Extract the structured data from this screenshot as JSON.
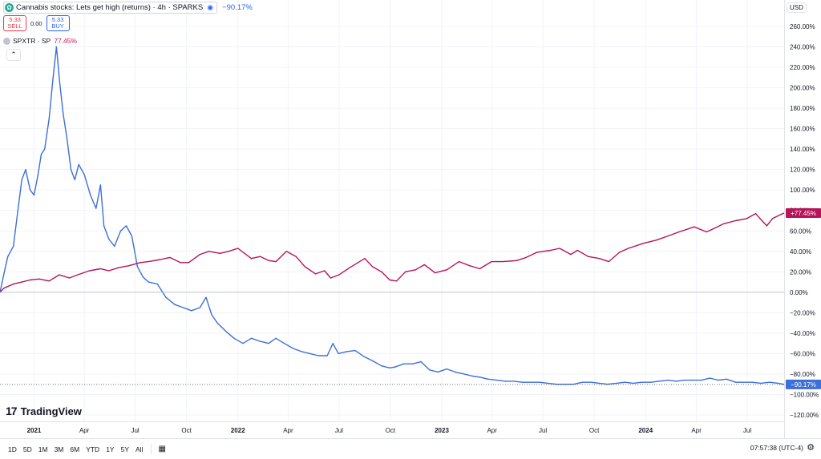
{
  "legend": {
    "symbol_logo": "cannabis-leaf-icon",
    "title": "Cannabis stocks: Lets get high (returns) · 4h · SPARKS",
    "change": "−90.17%",
    "sell_price": "5.33",
    "sell_label": "SELL",
    "spread": "0.00",
    "buy_price": "5.33",
    "buy_label": "BUY",
    "compare_symbol": "SPXTR · SP",
    "compare_change": "77.45%",
    "collapse_icon": "chevron-up-icon"
  },
  "price_scale": {
    "currency": "USD",
    "last_cannabis": "−90.17%",
    "last_spx": "+77.45%"
  },
  "logo_text": "TradingView",
  "bottom_bar": {
    "periods": [
      "1D",
      "5D",
      "1M",
      "3M",
      "6M",
      "YTD",
      "1Y",
      "5Y",
      "All"
    ],
    "calendar_icon": "calendar-range-icon",
    "time": "07:57:38 (UTC-4)",
    "settings_icon": "gear-icon"
  },
  "colors": {
    "cannabis": "#3c6fd8",
    "spx": "#b5135a",
    "grid": "#f0f3fa",
    "axis_text": "#131722"
  },
  "chart_data": {
    "type": "line",
    "title": "",
    "xlabel": "",
    "ylabel": "",
    "ylim": [
      -120,
      260
    ],
    "y_unit": "%",
    "y_ticks": [
      260,
      240,
      220,
      200,
      180,
      160,
      140,
      120,
      100,
      80,
      60,
      40,
      20,
      0,
      -20,
      -40,
      -60,
      -80,
      -100,
      -120
    ],
    "x_ticks": [
      {
        "label": "2021",
        "x": "2021-01-01",
        "bold": true
      },
      {
        "label": "Apr",
        "x": "2021-04-01"
      },
      {
        "label": "Jul",
        "x": "2021-07-01"
      },
      {
        "label": "Oct",
        "x": "2021-10-01"
      },
      {
        "label": "2022",
        "x": "2022-01-01",
        "bold": true
      },
      {
        "label": "Apr",
        "x": "2022-04-01"
      },
      {
        "label": "Jul",
        "x": "2022-07-01"
      },
      {
        "label": "Oct",
        "x": "2022-10-01"
      },
      {
        "label": "2023",
        "x": "2023-01-01",
        "bold": true
      },
      {
        "label": "Apr",
        "x": "2023-04-01"
      },
      {
        "label": "Jul",
        "x": "2023-07-01"
      },
      {
        "label": "Oct",
        "x": "2023-10-01"
      },
      {
        "label": "2024",
        "x": "2024-01-01",
        "bold": true
      },
      {
        "label": "Apr",
        "x": "2024-04-01"
      },
      {
        "label": "Jul",
        "x": "2024-07-01"
      }
    ],
    "x_range": [
      "2020-11-01",
      "2024-09-05"
    ],
    "series": [
      {
        "name": "Cannabis stocks: Lets get high (returns)",
        "color": "#3c6fd8",
        "points": [
          [
            "2020-11-01",
            0
          ],
          [
            "2020-11-08",
            18
          ],
          [
            "2020-11-15",
            35
          ],
          [
            "2020-11-25",
            45
          ],
          [
            "2020-12-03",
            80
          ],
          [
            "2020-12-10",
            110
          ],
          [
            "2020-12-17",
            120
          ],
          [
            "2020-12-25",
            100
          ],
          [
            "2021-01-01",
            95
          ],
          [
            "2021-01-08",
            115
          ],
          [
            "2021-01-14",
            135
          ],
          [
            "2021-01-20",
            140
          ],
          [
            "2021-01-28",
            170
          ],
          [
            "2021-02-04",
            210
          ],
          [
            "2021-02-10",
            240
          ],
          [
            "2021-02-16",
            205
          ],
          [
            "2021-02-22",
            175
          ],
          [
            "2021-03-01",
            150
          ],
          [
            "2021-03-08",
            120
          ],
          [
            "2021-03-15",
            110
          ],
          [
            "2021-03-22",
            125
          ],
          [
            "2021-04-01",
            115
          ],
          [
            "2021-04-12",
            95
          ],
          [
            "2021-04-22",
            82
          ],
          [
            "2021-04-30",
            105
          ],
          [
            "2021-05-06",
            65
          ],
          [
            "2021-05-15",
            52
          ],
          [
            "2021-05-25",
            45
          ],
          [
            "2021-06-05",
            60
          ],
          [
            "2021-06-15",
            65
          ],
          [
            "2021-06-25",
            55
          ],
          [
            "2021-07-05",
            25
          ],
          [
            "2021-07-15",
            15
          ],
          [
            "2021-07-25",
            10
          ],
          [
            "2021-08-10",
            8
          ],
          [
            "2021-08-25",
            -5
          ],
          [
            "2021-09-10",
            -12
          ],
          [
            "2021-09-25",
            -15
          ],
          [
            "2021-10-10",
            -18
          ],
          [
            "2021-10-25",
            -15
          ],
          [
            "2021-11-05",
            -5
          ],
          [
            "2021-11-15",
            -22
          ],
          [
            "2021-11-25",
            -30
          ],
          [
            "2021-12-10",
            -38
          ],
          [
            "2021-12-25",
            -45
          ],
          [
            "2022-01-10",
            -50
          ],
          [
            "2022-01-25",
            -45
          ],
          [
            "2022-02-10",
            -48
          ],
          [
            "2022-02-25",
            -50
          ],
          [
            "2022-03-10",
            -45
          ],
          [
            "2022-03-25",
            -50
          ],
          [
            "2022-04-10",
            -55
          ],
          [
            "2022-04-25",
            -58
          ],
          [
            "2022-05-10",
            -60
          ],
          [
            "2022-05-25",
            -62
          ],
          [
            "2022-06-10",
            -62
          ],
          [
            "2022-06-20",
            -50
          ],
          [
            "2022-06-30",
            -60
          ],
          [
            "2022-07-15",
            -58
          ],
          [
            "2022-07-30",
            -57
          ],
          [
            "2022-08-15",
            -63
          ],
          [
            "2022-08-30",
            -67
          ],
          [
            "2022-09-15",
            -72
          ],
          [
            "2022-09-30",
            -74
          ],
          [
            "2022-10-10",
            -73
          ],
          [
            "2022-10-25",
            -70
          ],
          [
            "2022-11-10",
            -70
          ],
          [
            "2022-11-25",
            -68
          ],
          [
            "2022-12-10",
            -76
          ],
          [
            "2022-12-25",
            -78
          ],
          [
            "2023-01-10",
            -75
          ],
          [
            "2023-01-25",
            -78
          ],
          [
            "2023-02-10",
            -80
          ],
          [
            "2023-02-25",
            -82
          ],
          [
            "2023-03-10",
            -83
          ],
          [
            "2023-03-25",
            -85
          ],
          [
            "2023-04-10",
            -86
          ],
          [
            "2023-04-25",
            -87
          ],
          [
            "2023-05-10",
            -87
          ],
          [
            "2023-05-25",
            -88
          ],
          [
            "2023-06-10",
            -88
          ],
          [
            "2023-06-25",
            -88
          ],
          [
            "2023-07-10",
            -89
          ],
          [
            "2023-07-25",
            -90
          ],
          [
            "2023-08-10",
            -90
          ],
          [
            "2023-08-25",
            -90
          ],
          [
            "2023-09-10",
            -88
          ],
          [
            "2023-09-25",
            -88
          ],
          [
            "2023-10-10",
            -89
          ],
          [
            "2023-10-25",
            -90
          ],
          [
            "2023-11-10",
            -89
          ],
          [
            "2023-11-25",
            -88
          ],
          [
            "2023-12-10",
            -89
          ],
          [
            "2023-12-25",
            -88
          ],
          [
            "2024-01-10",
            -88
          ],
          [
            "2024-01-25",
            -87
          ],
          [
            "2024-02-10",
            -86
          ],
          [
            "2024-02-25",
            -87
          ],
          [
            "2024-03-10",
            -86
          ],
          [
            "2024-03-25",
            -86
          ],
          [
            "2024-04-10",
            -86
          ],
          [
            "2024-04-25",
            -84
          ],
          [
            "2024-05-10",
            -86
          ],
          [
            "2024-05-25",
            -85
          ],
          [
            "2024-06-10",
            -88
          ],
          [
            "2024-06-25",
            -88
          ],
          [
            "2024-07-10",
            -88
          ],
          [
            "2024-07-25",
            -89
          ],
          [
            "2024-08-10",
            -88
          ],
          [
            "2024-08-25",
            -89
          ],
          [
            "2024-09-05",
            -90.17
          ]
        ]
      },
      {
        "name": "SPXTR",
        "color": "#b5135a",
        "points": [
          [
            "2020-11-01",
            0
          ],
          [
            "2020-11-08",
            4
          ],
          [
            "2020-11-25",
            8
          ],
          [
            "2020-12-10",
            10
          ],
          [
            "2020-12-25",
            12
          ],
          [
            "2021-01-10",
            13
          ],
          [
            "2021-01-28",
            11
          ],
          [
            "2021-02-15",
            17
          ],
          [
            "2021-03-05",
            14
          ],
          [
            "2021-03-20",
            17
          ],
          [
            "2021-04-10",
            21
          ],
          [
            "2021-04-30",
            23
          ],
          [
            "2021-05-15",
            21
          ],
          [
            "2021-06-01",
            24
          ],
          [
            "2021-06-20",
            26
          ],
          [
            "2021-07-10",
            29
          ],
          [
            "2021-07-25",
            30
          ],
          [
            "2021-08-15",
            32
          ],
          [
            "2021-09-01",
            34
          ],
          [
            "2021-09-20",
            29
          ],
          [
            "2021-10-05",
            29
          ],
          [
            "2021-10-25",
            37
          ],
          [
            "2021-11-10",
            40
          ],
          [
            "2021-11-30",
            38
          ],
          [
            "2021-12-15",
            40
          ],
          [
            "2022-01-01",
            43
          ],
          [
            "2022-01-25",
            33
          ],
          [
            "2022-02-10",
            35
          ],
          [
            "2022-02-25",
            31
          ],
          [
            "2022-03-10",
            30
          ],
          [
            "2022-03-29",
            40
          ],
          [
            "2022-04-15",
            35
          ],
          [
            "2022-05-01",
            25
          ],
          [
            "2022-05-20",
            18
          ],
          [
            "2022-06-05",
            21
          ],
          [
            "2022-06-16",
            14
          ],
          [
            "2022-07-01",
            17
          ],
          [
            "2022-07-20",
            24
          ],
          [
            "2022-08-16",
            33
          ],
          [
            "2022-08-30",
            25
          ],
          [
            "2022-09-15",
            20
          ],
          [
            "2022-09-30",
            12
          ],
          [
            "2022-10-12",
            11
          ],
          [
            "2022-10-28",
            20
          ],
          [
            "2022-11-15",
            22
          ],
          [
            "2022-12-01",
            27
          ],
          [
            "2022-12-20",
            19
          ],
          [
            "2023-01-10",
            22
          ],
          [
            "2023-02-01",
            30
          ],
          [
            "2023-02-20",
            26
          ],
          [
            "2023-03-10",
            23
          ],
          [
            "2023-03-31",
            30
          ],
          [
            "2023-04-20",
            30
          ],
          [
            "2023-05-15",
            31
          ],
          [
            "2023-06-01",
            34
          ],
          [
            "2023-06-20",
            39
          ],
          [
            "2023-07-15",
            41
          ],
          [
            "2023-07-31",
            43
          ],
          [
            "2023-08-20",
            37
          ],
          [
            "2023-09-01",
            41
          ],
          [
            "2023-09-20",
            35
          ],
          [
            "2023-10-10",
            33
          ],
          [
            "2023-10-27",
            30
          ],
          [
            "2023-11-15",
            39
          ],
          [
            "2023-12-01",
            43
          ],
          [
            "2023-12-29",
            48
          ],
          [
            "2024-01-20",
            51
          ],
          [
            "2024-02-10",
            55
          ],
          [
            "2024-03-01",
            59
          ],
          [
            "2024-03-28",
            64
          ],
          [
            "2024-04-19",
            59
          ],
          [
            "2024-05-01",
            62
          ],
          [
            "2024-05-20",
            67
          ],
          [
            "2024-06-10",
            70
          ],
          [
            "2024-06-30",
            72
          ],
          [
            "2024-07-16",
            77
          ],
          [
            "2024-07-24",
            72
          ],
          [
            "2024-08-05",
            65
          ],
          [
            "2024-08-15",
            72
          ],
          [
            "2024-08-30",
            76
          ],
          [
            "2024-09-05",
            77.45
          ]
        ]
      }
    ]
  }
}
